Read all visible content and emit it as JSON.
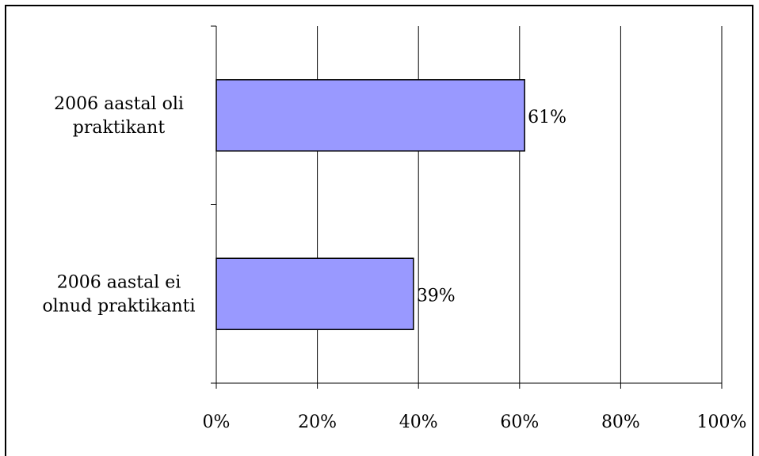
{
  "chart_data": {
    "type": "bar",
    "orientation": "horizontal",
    "categories": [
      [
        "2006 aastal oli",
        "praktikant"
      ],
      [
        "2006 aastal ei",
        "olnud praktikanti"
      ]
    ],
    "values": [
      61,
      39
    ],
    "data_labels": [
      "61%",
      "39%"
    ],
    "xlim": [
      0,
      100
    ],
    "xticks": [
      0,
      20,
      40,
      60,
      80,
      100
    ],
    "xtick_labels": [
      "0%",
      "20%",
      "40%",
      "60%",
      "80%",
      "100%"
    ],
    "grid": "vertical",
    "legend": "none",
    "bar_color": "#9999ff",
    "bar_edge_color": "#000000"
  }
}
